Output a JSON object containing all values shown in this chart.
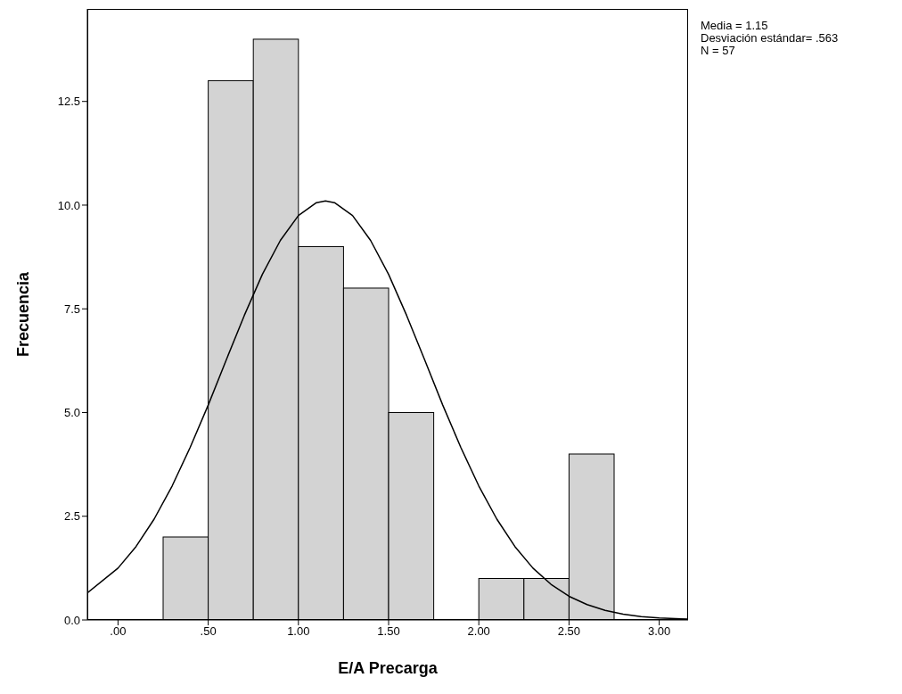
{
  "chart_data": {
    "type": "histogram",
    "xlabel": "E/A Precarga",
    "ylabel": "Frecuencia",
    "bins": [
      0.25,
      0.5,
      0.75,
      1.0,
      1.25,
      1.5,
      1.75,
      2.0,
      2.25,
      2.5,
      2.75
    ],
    "values": [
      2,
      13,
      14,
      9,
      8,
      5,
      0,
      1,
      1,
      4
    ],
    "color": "#d3d3d3",
    "series": [
      {
        "type": "line",
        "color": "#000000",
        "x": [
          -0.17,
          0.0,
          0.1,
          0.2,
          0.3,
          0.4,
          0.5,
          0.6,
          0.7,
          0.8,
          0.9,
          1.0,
          1.1,
          1.15,
          1.2,
          1.3,
          1.4,
          1.5,
          1.6,
          1.7,
          1.8,
          1.9,
          2.0,
          2.1,
          2.2,
          2.3,
          2.4,
          2.5,
          2.6,
          2.7,
          2.8,
          2.9,
          3.0,
          3.16
        ],
        "values": [
          0.65,
          1.25,
          1.77,
          2.43,
          3.23,
          4.16,
          5.18,
          6.27,
          7.34,
          8.33,
          9.15,
          9.75,
          10.06,
          10.1,
          10.06,
          9.75,
          9.15,
          8.33,
          7.34,
          6.27,
          5.18,
          4.16,
          3.23,
          2.43,
          1.77,
          1.25,
          0.86,
          0.57,
          0.37,
          0.23,
          0.14,
          0.08,
          0.05,
          0.02
        ]
      }
    ],
    "xlim": [
      -0.17,
      3.16
    ],
    "xticks": [
      {
        "value": 0,
        "label": ".00"
      },
      {
        "value": 0.5,
        "label": ".50"
      },
      {
        "value": 1,
        "label": "1.00"
      },
      {
        "value": 1.5,
        "label": "1.50"
      },
      {
        "value": 2,
        "label": "2.00"
      },
      {
        "value": 2.5,
        "label": "2.50"
      },
      {
        "value": 3,
        "label": "3.00"
      }
    ],
    "ylim": [
      0,
      14.73
    ],
    "yticks": [
      {
        "value": 0,
        "label": "0.0"
      },
      {
        "value": 2.5,
        "label": "2.5"
      },
      {
        "value": 5,
        "label": "5.0"
      },
      {
        "value": 7.5,
        "label": "7.5"
      },
      {
        "value": 10,
        "label": "10.0"
      },
      {
        "value": 12.5,
        "label": "12.5"
      }
    ],
    "annotations": [
      "Media = 1.15",
      "Desviación estándar= .563",
      "N = 57"
    ]
  }
}
